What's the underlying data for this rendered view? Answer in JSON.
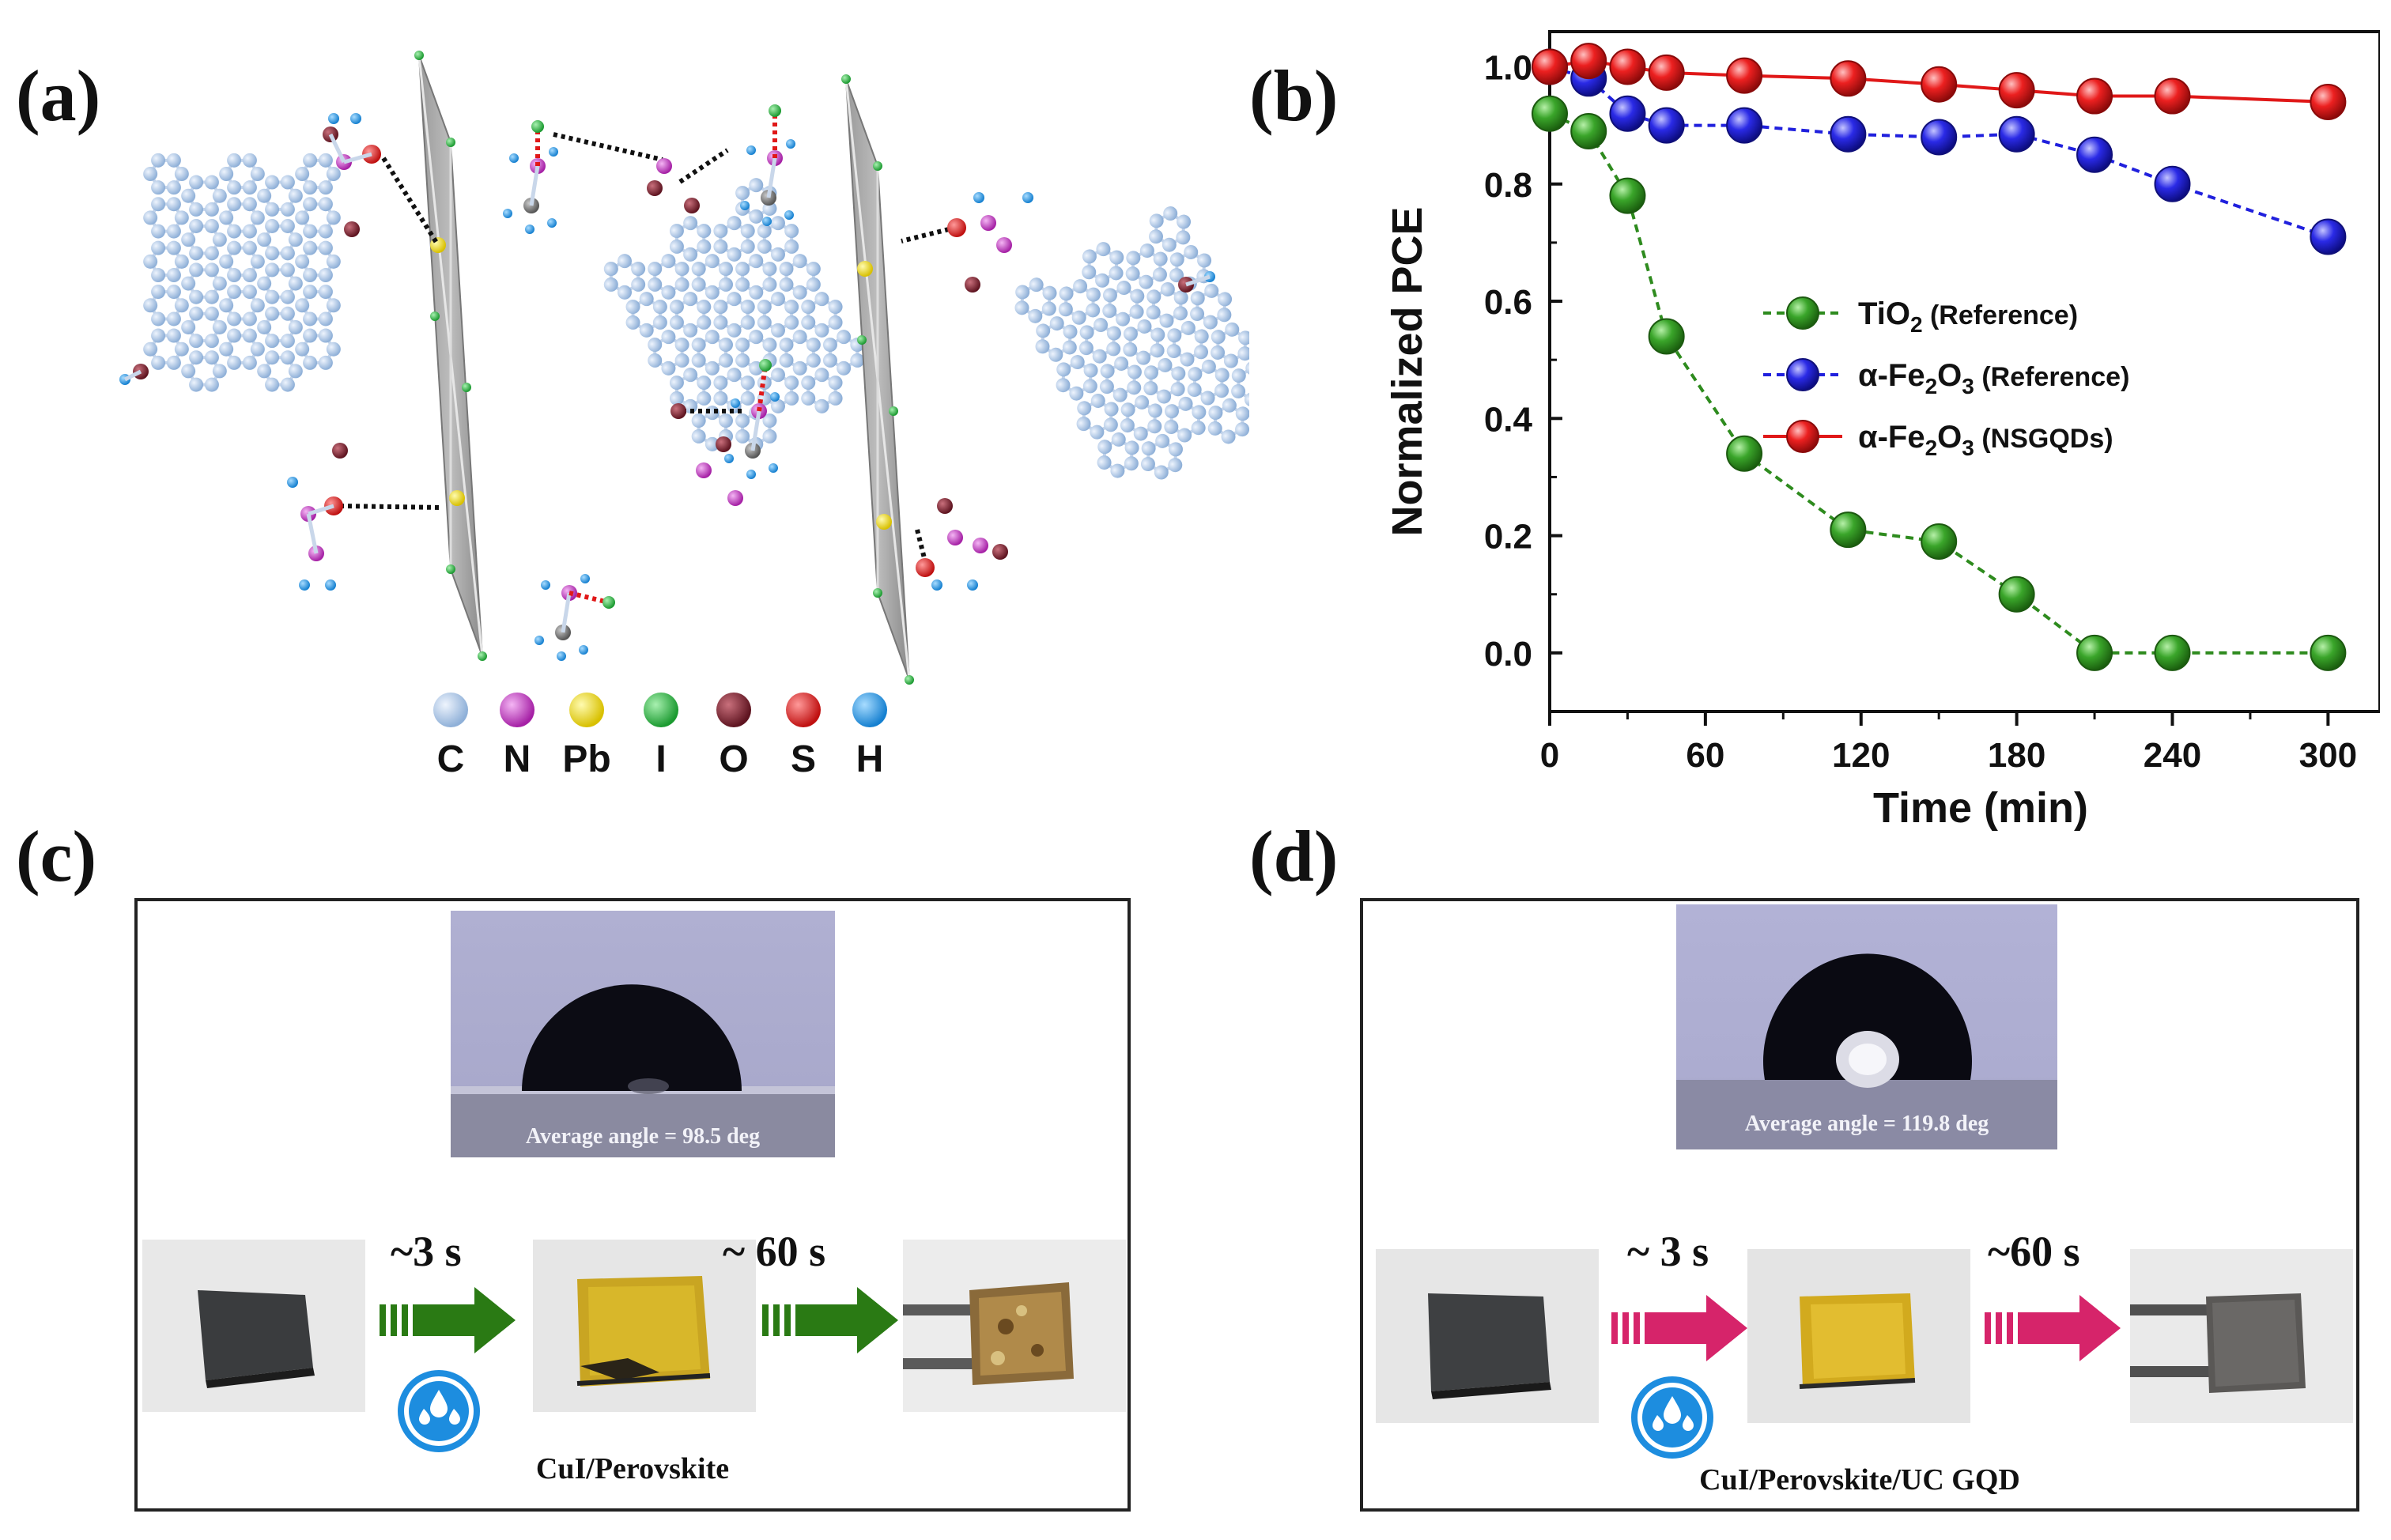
{
  "panels": {
    "a": {
      "label": "(a)",
      "legend": [
        {
          "symbol": "C",
          "color": "#a8c4e6"
        },
        {
          "symbol": "N",
          "color": "#c43dc4"
        },
        {
          "symbol": "Pb",
          "color": "#f2e01c"
        },
        {
          "symbol": "I",
          "color": "#2fb84a"
        },
        {
          "symbol": "O",
          "color": "#7a1d2a"
        },
        {
          "symbol": "S",
          "color": "#e0282a"
        },
        {
          "symbol": "H",
          "color": "#2a9ce0"
        }
      ]
    },
    "b": {
      "label": "(b)"
    },
    "c": {
      "label": "(c)",
      "angle_text": "Average angle = 98.5 deg",
      "time1": "~3 s",
      "time2": "~ 60 s",
      "caption": "CuI/Perovskite",
      "arrow_color": "#2a7a14"
    },
    "d": {
      "label": "(d)",
      "angle_text": "Average angle = 119.8 deg",
      "time1": "~ 3 s",
      "time2": "~60 s",
      "caption": "CuI/Perovskite/UC GQD",
      "arrow_color": "#d6246a"
    }
  },
  "chart_data": {
    "type": "line",
    "title": "",
    "xlabel": "Time (min)",
    "ylabel": "Normalized PCE",
    "xlim": [
      0,
      320
    ],
    "ylim": [
      -0.1,
      1.06
    ],
    "xticks": [
      0,
      60,
      120,
      180,
      240,
      300
    ],
    "yticks": [
      0.0,
      0.2,
      0.4,
      0.6,
      0.8,
      1.0
    ],
    "xtick_labels": [
      "0",
      "60",
      "120",
      "180",
      "240",
      "300"
    ],
    "ytick_labels": [
      "0.0",
      "0.2",
      "0.4",
      "0.6",
      "0.8",
      "1.0"
    ],
    "legend_position": "center-right",
    "series": [
      {
        "name": "TiO2 (Reference)",
        "name_main": "TiO",
        "name_sub": "2",
        "name_rest": " (Reference)",
        "color": "#2e8b1e",
        "line_style": "dashed",
        "x": [
          0,
          15,
          30,
          45,
          75,
          115,
          150,
          180,
          210,
          240,
          300
        ],
        "y": [
          0.92,
          0.89,
          0.78,
          0.54,
          0.34,
          0.21,
          0.19,
          0.1,
          0.0,
          0.0,
          0.0
        ]
      },
      {
        "name": "α-Fe2O3 (Reference)",
        "name_main": "α-Fe",
        "name_sub": "2",
        "name_mid": "O",
        "name_sub2": "3",
        "name_rest": " (Reference)",
        "color": "#2020dd",
        "line_style": "dashed",
        "x": [
          0,
          15,
          30,
          45,
          75,
          115,
          150,
          180,
          210,
          240,
          300
        ],
        "y": [
          1.0,
          0.98,
          0.92,
          0.9,
          0.9,
          0.885,
          0.88,
          0.885,
          0.85,
          0.8,
          0.71
        ]
      },
      {
        "name": "α-Fe2O3 (NSGQDs)",
        "name_main": "α-Fe",
        "name_sub": "2",
        "name_mid": "O",
        "name_sub2": "3",
        "name_rest": " (NSGQDs)",
        "color": "#e01818",
        "line_style": "solid",
        "x": [
          0,
          15,
          30,
          45,
          75,
          115,
          150,
          180,
          210,
          240,
          300
        ],
        "y": [
          1.0,
          1.01,
          1.0,
          0.99,
          0.985,
          0.98,
          0.97,
          0.96,
          0.95,
          0.95,
          0.94
        ]
      }
    ]
  }
}
